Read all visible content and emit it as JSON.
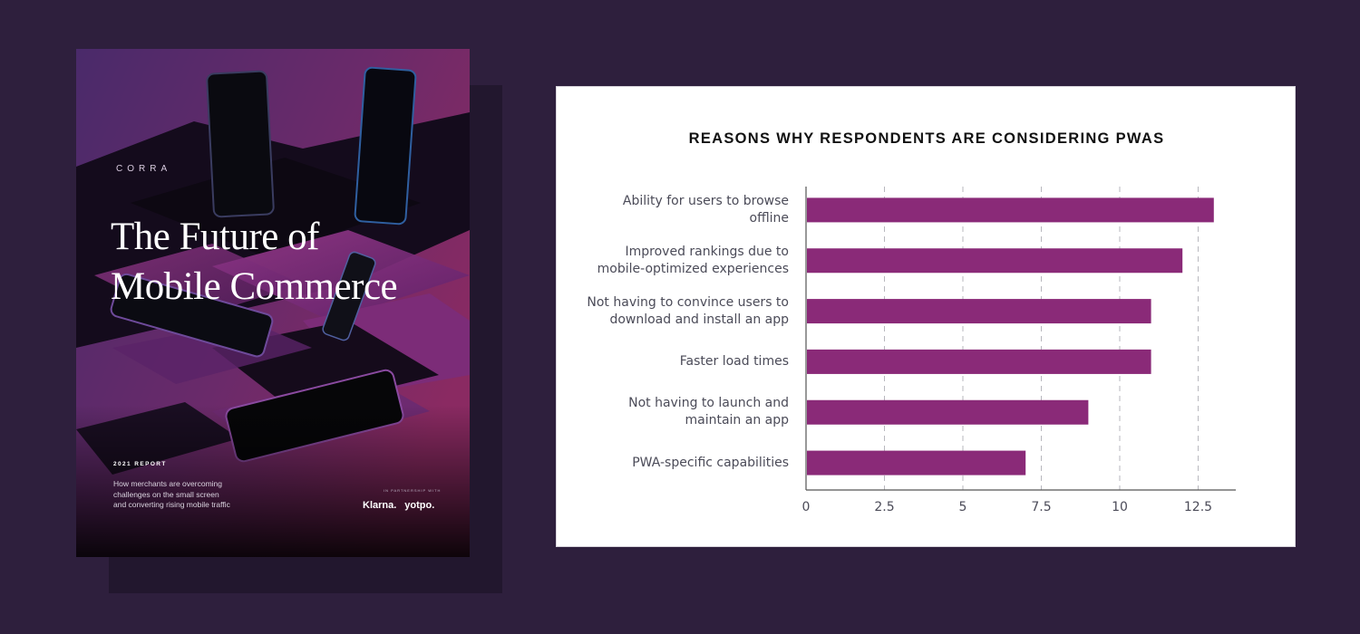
{
  "cover": {
    "brand": "CORRA",
    "title_lines": [
      "The Future of",
      "Mobile Commerce"
    ],
    "report_year": "2021 REPORT",
    "subtitle_lines": [
      "How merchants are overcoming",
      "challenges on the small screen",
      "and converting rising mobile traffic"
    ],
    "partnership_label": "IN PARTNERSHIP WITH",
    "partners": [
      "Klarna.",
      "yotpo."
    ],
    "colors": {
      "accent": "#8a2a78",
      "dark": "#0b0710",
      "background": "#2e1f3d"
    }
  },
  "chart_data": {
    "type": "bar",
    "orientation": "horizontal",
    "title": "REASONS WHY RESPONDENTS ARE CONSIDERING PWAS",
    "categories": [
      [
        "Ability for users to browse",
        "offline"
      ],
      [
        "Improved rankings due to",
        "mobile-optimized experiences"
      ],
      [
        "Not having to convince users to",
        "download and install an app"
      ],
      [
        "Faster load times"
      ],
      [
        "Not having to launch and",
        "maintain an app"
      ],
      [
        "PWA-specific capabilities"
      ]
    ],
    "values": [
      13,
      12,
      11,
      11,
      9,
      7
    ],
    "xlim": [
      0,
      13.7
    ],
    "xticks": [
      0,
      2.5,
      5,
      7.5,
      10,
      12.5
    ],
    "xtick_labels": [
      "0",
      "2.5",
      "5",
      "7.5",
      "10",
      "12.5"
    ],
    "grid": "vertical dashed",
    "bar_color": "#8a2a78",
    "xlabel": "",
    "ylabel": ""
  }
}
